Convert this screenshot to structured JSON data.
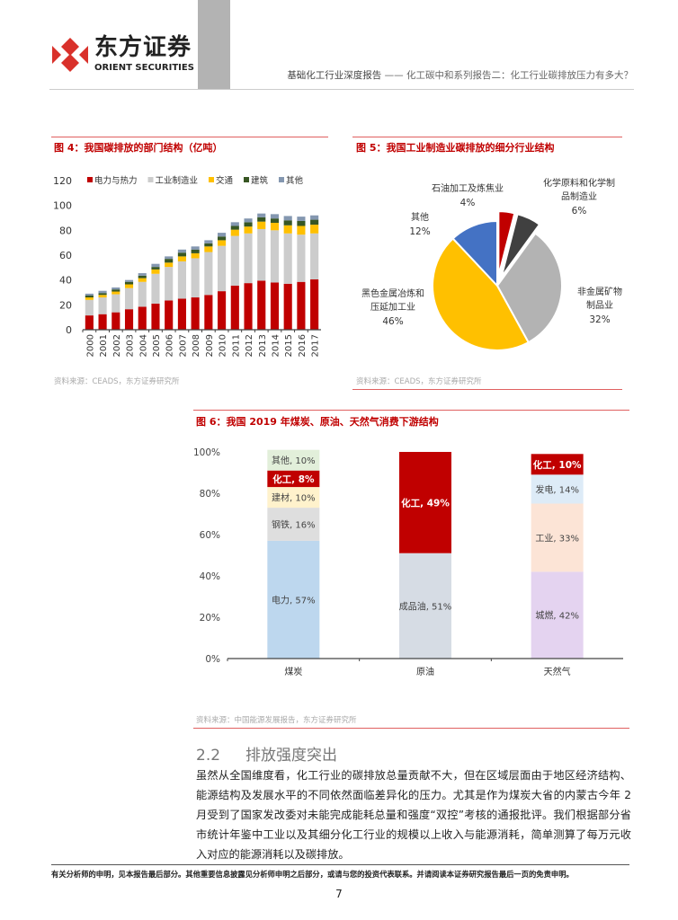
{
  "header": {
    "logo_cn": "东方证券",
    "logo_en": "ORIENT SECURITIES",
    "report_type": "基础化工行业深度报告",
    "report_title": "—— 化工碳中和系列报告二：化工行业碳排放压力有多大？",
    "brand_color": "#d9312b"
  },
  "figures": [
    {
      "title": "图 4：我国碳排放的部门结构（亿吨）",
      "source": "资料来源：CEADS，东方证券研究所"
    },
    {
      "title": "图 5：我国工业制造业碳排放的细分行业结构",
      "source": "资料来源：CEADS，东方证券研究所"
    },
    {
      "title": "图 6：我国 2019 年煤炭、原油、天然气消费下游结构",
      "source": "资料来源：中国能源发展报告，东方证券研究所"
    }
  ],
  "chart_data": [
    {
      "type": "bar",
      "stacked": true,
      "ylim": [
        0,
        120
      ],
      "yticks": [
        "0",
        "20",
        "40",
        "60",
        "80",
        "100",
        "120"
      ],
      "legend": "top",
      "categories": [
        "2000",
        "2001",
        "2002",
        "2003",
        "2004",
        "2005",
        "2006",
        "2007",
        "2008",
        "2009",
        "2010",
        "2011",
        "2012",
        "2013",
        "2014",
        "2015",
        "2016",
        "2017"
      ],
      "series": [
        {
          "name": "电力与热力",
          "color": "#c00000",
          "values": [
            11.5,
            12.5,
            14,
            16.5,
            18.5,
            21,
            23.5,
            25,
            26,
            28,
            31,
            35.5,
            37.5,
            39.5,
            38,
            37,
            38.5,
            40.5
          ]
        },
        {
          "name": "工业制造业",
          "color": "#cccccc",
          "values": [
            12.5,
            13.5,
            14.5,
            17,
            20,
            24,
            27,
            30,
            31.5,
            34.5,
            36.5,
            40,
            40,
            41.5,
            42,
            40.5,
            38,
            37
          ]
        },
        {
          "name": "交通",
          "color": "#ffc000",
          "values": [
            2,
            2,
            2.2,
            3,
            3,
            3.5,
            3.5,
            4,
            4,
            4.5,
            4.5,
            5,
            5.5,
            6,
            6,
            6.5,
            7,
            7
          ]
        },
        {
          "name": "建筑",
          "color": "#375623",
          "values": [
            1.5,
            1.5,
            1.7,
            2,
            2,
            2,
            3,
            3,
            3,
            2.5,
            3,
            3,
            3.5,
            3.5,
            3.5,
            4,
            4,
            4
          ]
        },
        {
          "name": "其他",
          "color": "#8497b0",
          "values": [
            1.5,
            1.8,
            1.6,
            1.5,
            2,
            2.5,
            2,
            2.5,
            2.5,
            2.5,
            3,
            3,
            3,
            3,
            3.5,
            3.5,
            3.5,
            3.5
          ]
        }
      ]
    },
    {
      "type": "pie",
      "slices": [
        {
          "label": [
            "石油加工及炼焦业"
          ],
          "value": 4,
          "pct": "4%",
          "color": "#c00000",
          "exploded": true
        },
        {
          "label": [
            "化学原料和化学制",
            "品制造业"
          ],
          "value": 6,
          "pct": "6%",
          "color": "#404040",
          "exploded": true
        },
        {
          "label": [
            "非金属矿物",
            "制品业"
          ],
          "value": 32,
          "pct": "32%",
          "color": "#b3b3b3",
          "exploded": false
        },
        {
          "label": [
            "黑色金属冶炼和",
            "压延加工业"
          ],
          "value": 46,
          "pct": "46%",
          "color": "#ffc000",
          "exploded": false
        },
        {
          "label": [
            "其他"
          ],
          "value": 12,
          "pct": "12%",
          "color": "#4472c4",
          "exploded": false
        }
      ]
    },
    {
      "type": "bar",
      "stacked": true,
      "percent": true,
      "ylim": [
        0,
        100
      ],
      "yticks": [
        "0%",
        "20%",
        "40%",
        "60%",
        "80%",
        "100%"
      ],
      "categories": [
        "煤炭",
        "原油",
        "天然气"
      ],
      "stacks": [
        [
          {
            "label": "电力, 57%",
            "value": 57,
            "color": "#bdd7ee"
          },
          {
            "label": "钢铁, 16%",
            "value": 16,
            "color": "#dedede"
          },
          {
            "label": "建材, 10%",
            "value": 10,
            "color": "#fff2cc"
          },
          {
            "label": "化工, 8%",
            "value": 8,
            "color": "#c00000",
            "bold": true
          },
          {
            "label": "其他, 10%",
            "value": 10,
            "color": "#e2efda"
          }
        ],
        [
          {
            "label": "成品油, 51%",
            "value": 51,
            "color": "#d6dce4"
          },
          {
            "label": "化工, 49%",
            "value": 49,
            "color": "#c00000",
            "bold": true
          }
        ],
        [
          {
            "label": "城燃, 42%",
            "value": 42,
            "color": "#e4d3f0"
          },
          {
            "label": "工业, 33%",
            "value": 33,
            "color": "#fce4d6"
          },
          {
            "label": "发电, 14%",
            "value": 14,
            "color": "#ddebf7"
          },
          {
            "label": "化工, 10%",
            "value": 10,
            "color": "#c00000",
            "bold": true
          }
        ]
      ]
    }
  ],
  "section": {
    "number": "2.2",
    "title": "排放强度突出",
    "paragraph": "虽然从全国维度看，化工行业的碳排放总量贡献不大，但在区域层面由于地区经济结构、能源结构及发展水平的不同依然面临差异化的压力。尤其是作为煤炭大省的内蒙古今年 2 月受到了国家发改委对未能完成能耗总量和强度“双控”考核的通报批评。我们根据部分省市统计年鉴中工业以及其细分化工行业的规模以上收入与能源消耗，简单测算了每万元收入对应的能源消耗以及碳排放。"
  },
  "footer": {
    "disclaimer": "有关分析师的申明，见本报告最后部分。其他重要信息披露见分析师申明之后部分，或请与您的投资代表联系。并请阅读本证券研究报告最后一页的免责申明。",
    "page_number": "7"
  }
}
